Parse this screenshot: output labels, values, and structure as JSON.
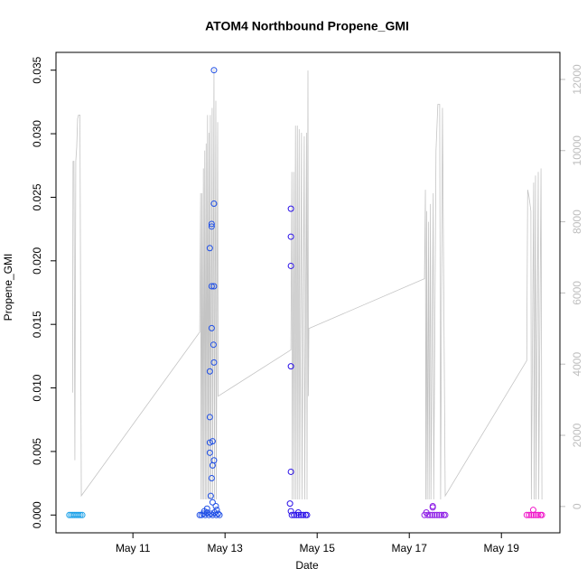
{
  "chart_data": {
    "type": "scatter",
    "title": "ATOM4 Northbound Propene_GMI",
    "xlabel": "Date",
    "ylabel": "Propene_GMI",
    "xlim": [
      9.33,
      20.27
    ],
    "xticks": [
      {
        "value": 11,
        "label": "May 11"
      },
      {
        "value": 13,
        "label": "May 13"
      },
      {
        "value": 15,
        "label": "May 15"
      },
      {
        "value": 17,
        "label": "May 17"
      },
      {
        "value": 19,
        "label": "May 19"
      }
    ],
    "ylim": [
      -0.0014,
      0.0364
    ],
    "yticks": [
      {
        "value": 0,
        "label": "0.000"
      },
      0.005,
      {
        "value": 0.01,
        "label": "0.010"
      },
      0.015,
      {
        "value": 0.02,
        "label": "0.020"
      },
      0.025,
      {
        "value": 0.03,
        "label": "0.030"
      },
      0.035
    ],
    "y2lim": [
      -740,
      12760
    ],
    "y2ticks": [
      0,
      2000,
      4000,
      6000,
      8000,
      10000,
      12000
    ],
    "series": [
      {
        "color": "#1aa0e8",
        "x": [
          9.62,
          9.66,
          9.7,
          9.74,
          9.78,
          9.82,
          9.86,
          9.9
        ],
        "values": [
          0,
          0,
          0,
          0,
          0,
          0,
          0,
          0
        ]
      },
      {
        "color": "#1f4fe6",
        "x": [
          12.76,
          12.76,
          12.71,
          12.71,
          12.67,
          12.71,
          12.76,
          12.71,
          12.75,
          12.76,
          12.67,
          12.67,
          12.73,
          12.67,
          12.67,
          12.76,
          12.73,
          12.71,
          12.69,
          12.73,
          12.8,
          12.61,
          12.55,
          12.82,
          12.45,
          12.49,
          12.53,
          12.57,
          12.61,
          12.65,
          12.69,
          12.73,
          12.77,
          12.81,
          12.85,
          12.88
        ],
        "values": [
          0.035,
          0.0245,
          0.0229,
          0.0227,
          0.021,
          0.018,
          0.018,
          0.0147,
          0.0134,
          0.012,
          0.0113,
          0.0077,
          0.0058,
          0.0057,
          0.0049,
          0.0043,
          0.0039,
          0.0029,
          0.0015,
          0.001,
          0.0007,
          0.0005,
          0.0003,
          0.0004,
          0,
          0,
          0.0001,
          0,
          0.0002,
          0,
          0.0001,
          0,
          0.0002,
          0,
          0.0001,
          0
        ]
      },
      {
        "color": "#2a10e8",
        "x": [
          14.43,
          14.43,
          14.43,
          14.43,
          14.43,
          14.41,
          14.43,
          14.59,
          14.45,
          14.5,
          14.55,
          14.6,
          14.65,
          14.7,
          14.75,
          14.78
        ],
        "values": [
          0.0241,
          0.0219,
          0.0196,
          0.0117,
          0.0034,
          0.0009,
          0.0003,
          0.0002,
          0,
          0,
          0,
          0,
          0,
          0,
          0,
          0
        ]
      },
      {
        "color": "#8e1ee6",
        "x": [
          17.51,
          17.51,
          17.37,
          17.33,
          17.4,
          17.45,
          17.5,
          17.55,
          17.6,
          17.65,
          17.7,
          17.75,
          17.78
        ],
        "values": [
          0.0007,
          0.0006,
          0.0002,
          0,
          0,
          0,
          0,
          0,
          0,
          0,
          0,
          0,
          0
        ]
      },
      {
        "color": "#f010c8",
        "x": [
          19.69,
          19.55,
          19.6,
          19.65,
          19.7,
          19.75,
          19.8,
          19.85,
          19.88
        ],
        "values": [
          0.0004,
          0,
          0,
          0,
          0,
          0,
          0,
          0,
          0
        ]
      },
      {
        "type": "line",
        "axis": "y2",
        "color": "#c4c4c4",
        "x": [
          9.69,
          9.7,
          9.72,
          9.74,
          9.76,
          9.78,
          9.8,
          9.82,
          9.85,
          9.88,
          12.45,
          12.47,
          12.48,
          12.5,
          12.51,
          12.53,
          12.54,
          12.56,
          12.57,
          12.59,
          12.6,
          12.62,
          12.63,
          12.65,
          12.66,
          12.68,
          12.69,
          12.72,
          12.73,
          12.76,
          12.77,
          12.8,
          12.81,
          12.84,
          12.85,
          14.43,
          14.45,
          14.46,
          14.49,
          14.5,
          14.53,
          14.54,
          14.57,
          14.58,
          14.61,
          14.62,
          14.66,
          14.67,
          14.72,
          14.73,
          14.77,
          14.78,
          14.8,
          14.81,
          14.82,
          17.33,
          17.35,
          17.36,
          17.38,
          17.39,
          17.42,
          17.43,
          17.46,
          17.47,
          17.52,
          17.53,
          17.58,
          17.62,
          17.66,
          17.68,
          17.72,
          17.78,
          19.55,
          19.57,
          19.6,
          19.64,
          19.65,
          19.7,
          19.71,
          19.74,
          19.75,
          19.8,
          19.81,
          19.86,
          19.88
        ],
        "values": [
          3200,
          9700,
          9700,
          1300,
          9700,
          10100,
          10900,
          11000,
          11000,
          300,
          4900,
          8800,
          200,
          8800,
          200,
          9500,
          200,
          10000,
          200,
          10200,
          200,
          11000,
          200,
          10500,
          200,
          11000,
          200,
          11200,
          200,
          12300,
          200,
          11400,
          200,
          10800,
          3100,
          4400,
          9400,
          200,
          9400,
          200,
          10700,
          200,
          10700,
          200,
          10600,
          200,
          10500,
          200,
          10400,
          200,
          10500,
          200,
          12250,
          3100,
          5000,
          6400,
          8900,
          200,
          8300,
          200,
          8000,
          200,
          8500,
          200,
          8800,
          200,
          10000,
          11300,
          11300,
          200,
          11200,
          300,
          4100,
          8900,
          8700,
          8300,
          200,
          9100,
          200,
          9300,
          200,
          9400,
          200,
          9500,
          200
        ]
      }
    ]
  }
}
